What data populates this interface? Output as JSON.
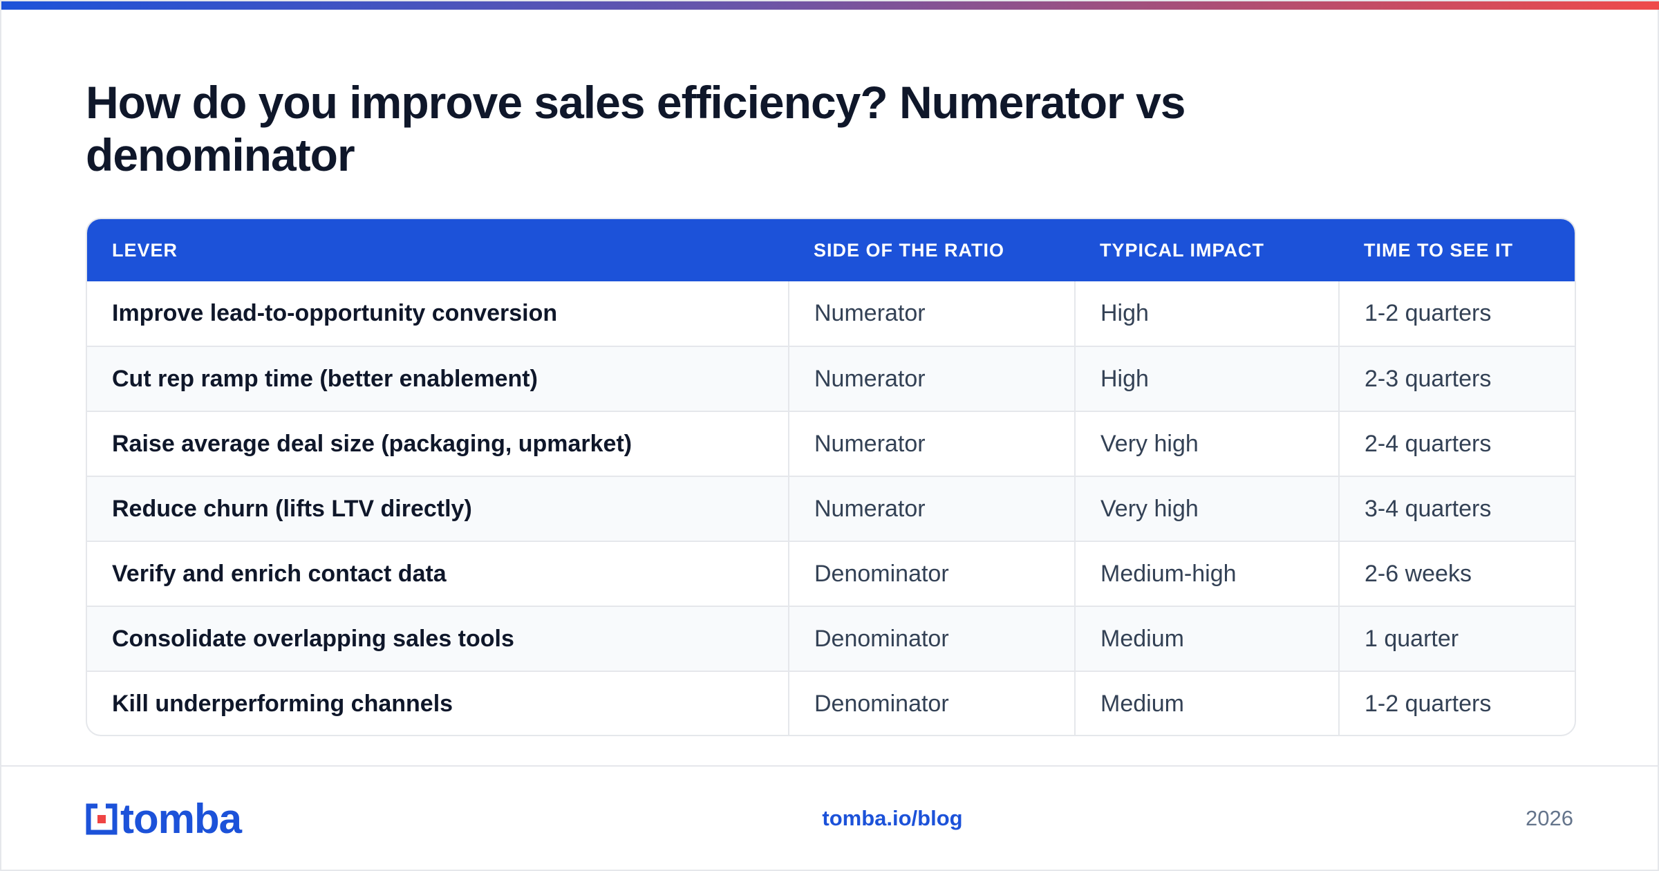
{
  "title": "How do you improve sales efficiency? Numerator vs denominator",
  "table": {
    "headers": [
      "LEVER",
      "SIDE OF THE RATIO",
      "TYPICAL IMPACT",
      "TIME TO SEE IT"
    ],
    "rows": [
      [
        "Improve lead-to-opportunity conversion",
        "Numerator",
        "High",
        "1-2 quarters"
      ],
      [
        "Cut rep ramp time (better enablement)",
        "Numerator",
        "High",
        "2-3 quarters"
      ],
      [
        "Raise average deal size (packaging, upmarket)",
        "Numerator",
        "Very high",
        "2-4 quarters"
      ],
      [
        "Reduce churn (lifts LTV directly)",
        "Numerator",
        "Very high",
        "3-4 quarters"
      ],
      [
        "Verify and enrich contact data",
        "Denominator",
        "Medium-high",
        "2-6 weeks"
      ],
      [
        "Consolidate overlapping sales tools",
        "Denominator",
        "Medium",
        "1 quarter"
      ],
      [
        "Kill underperforming channels",
        "Denominator",
        "Medium",
        "1-2 quarters"
      ]
    ]
  },
  "footer": {
    "logo_text": "tomba",
    "link": "tomba.io/blog",
    "year": "2026"
  },
  "colors": {
    "accent": "#1c52d9",
    "logo_red": "#ef4444",
    "text_dark": "#0f172a",
    "text_body": "#334155"
  }
}
